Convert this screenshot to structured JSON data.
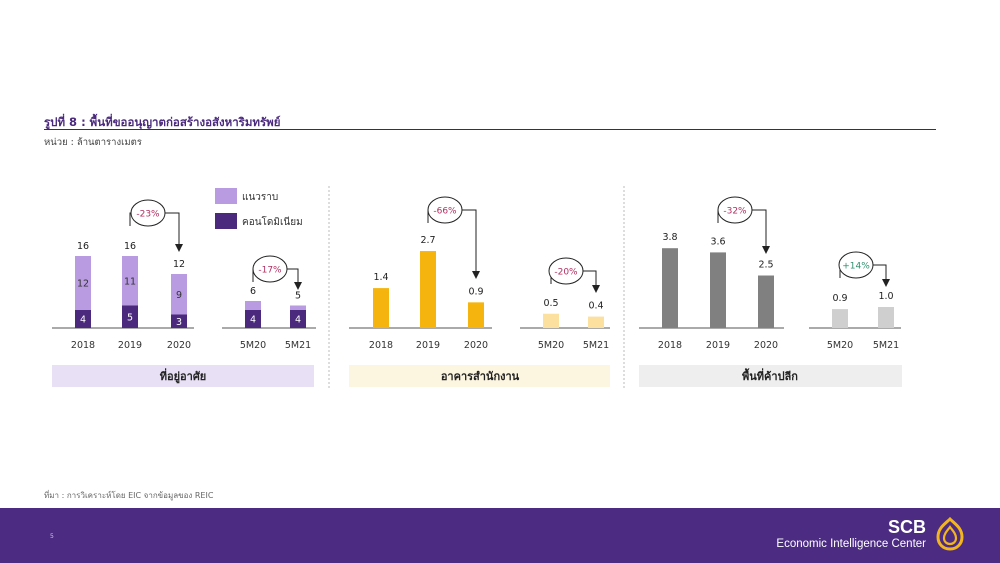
{
  "header": {
    "title": "รูปที่ 8 : พื้นที่ขออนุญาตก่อสร้างอสังหาริมทรัพย์",
    "unit": "หน่วย : ล้านตารางเมตร"
  },
  "colors": {
    "landed": "#b89be0",
    "condo": "#4b2a7d",
    "office": "#f5b50e",
    "office_light": "#fbe0a0",
    "retail": "#808080",
    "retail_light": "#cfcfcf",
    "residential_bg": "#e8e0f5",
    "office_bg": "#fcf5e0",
    "retail_bg": "#eeeeee",
    "change_negative": "#b03060",
    "change_positive": "#2f8f6f",
    "footer": "#4b2c82",
    "logo": "#f2b51e"
  },
  "legend": [
    {
      "label": "แนวราบ",
      "color": "#b89be0"
    },
    {
      "label": "คอนโดมิเนียม",
      "color": "#4b2a7d"
    }
  ],
  "chart_data": [
    {
      "type": "bar",
      "panel_label": "ที่อยู่อาศัย",
      "stacked": true,
      "groups": [
        {
          "categories": [
            "2018",
            "2019",
            "2020"
          ],
          "series": [
            {
              "name": "คอนโดมิเนียม",
              "values": [
                4,
                5,
                3
              ]
            },
            {
              "name": "แนวราบ",
              "values": [
                12,
                11,
                9
              ]
            }
          ],
          "totals": [
            16,
            16,
            12
          ],
          "change": {
            "from": "2019",
            "to": "2020",
            "label": "-23%"
          }
        },
        {
          "categories": [
            "5M20",
            "5M21"
          ],
          "series": [
            {
              "name": "คอนโดมิเนียม",
              "values": [
                4,
                4
              ]
            },
            {
              "name": "แนวราบ",
              "values": [
                2,
                1
              ]
            }
          ],
          "totals": [
            6,
            5
          ],
          "change": {
            "from": "5M20",
            "to": "5M21",
            "label": "-17%"
          }
        }
      ]
    },
    {
      "type": "bar",
      "panel_label": "อาคารสำนักงาน",
      "groups": [
        {
          "categories": [
            "2018",
            "2019",
            "2020"
          ],
          "values": [
            1.4,
            2.7,
            0.9
          ],
          "labels": [
            "1.4",
            "2.7",
            "0.9"
          ],
          "change": {
            "from": "2019",
            "to": "2020",
            "label": "-66%"
          }
        },
        {
          "categories": [
            "5M20",
            "5M21"
          ],
          "values": [
            0.5,
            0.4
          ],
          "labels": [
            "0.5",
            "0.4"
          ],
          "change": {
            "from": "5M20",
            "to": "5M21",
            "label": "-20%"
          }
        }
      ]
    },
    {
      "type": "bar",
      "panel_label": "พื้นที่ค้าปลีก",
      "groups": [
        {
          "categories": [
            "2018",
            "2019",
            "2020"
          ],
          "values": [
            3.8,
            3.6,
            2.5
          ],
          "labels": [
            "3.8",
            "3.6",
            "2.5"
          ],
          "change": {
            "from": "2019",
            "to": "2020",
            "label": "-32%"
          }
        },
        {
          "categories": [
            "5M20",
            "5M21"
          ],
          "values": [
            0.9,
            1.0
          ],
          "labels": [
            "0.9",
            "1.0"
          ],
          "change": {
            "from": "5M20",
            "to": "5M21",
            "label": "+14%"
          }
        }
      ]
    }
  ],
  "source": "ที่มา : การวิเคราะห์โดย EIC จากข้อมูลของ REIC",
  "footer": {
    "page_number": "5",
    "brand": "SCB",
    "brand_sub": "Economic Intelligence Center"
  }
}
